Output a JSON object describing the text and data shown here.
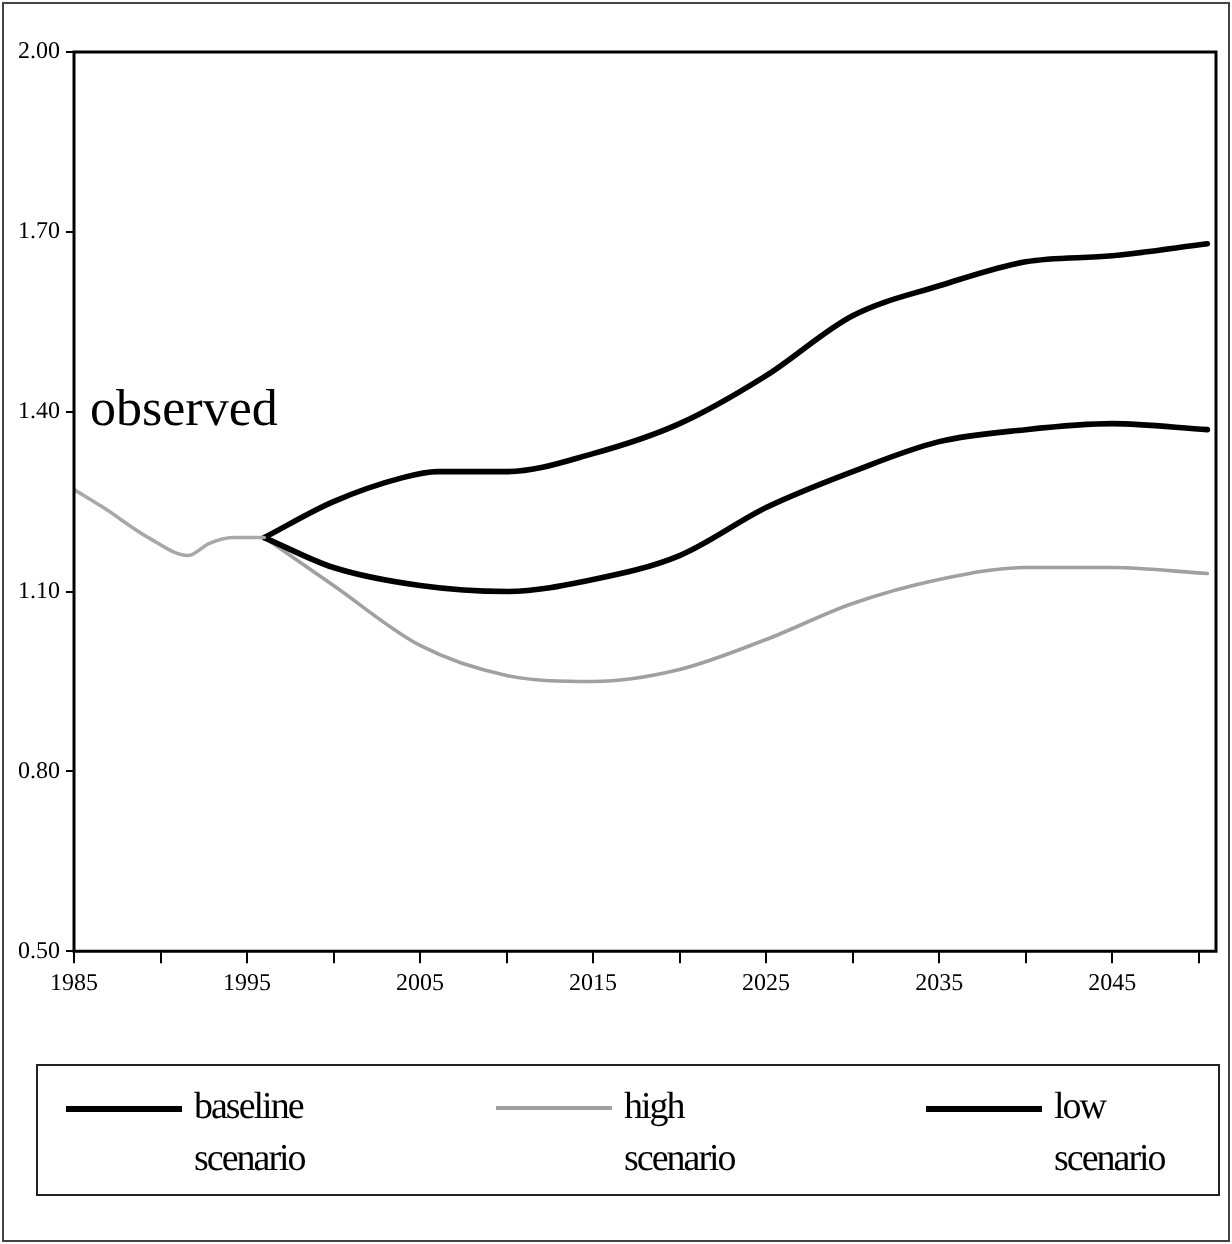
{
  "chart_data": {
    "type": "line",
    "xlim": [
      1985,
      2051
    ],
    "ylim": [
      0.5,
      2.0
    ],
    "xticks": [
      1985,
      {
        "value": 1990,
        "label": null
      },
      1995,
      {
        "value": 2000,
        "label": null
      },
      2005,
      {
        "value": 2010,
        "label": null
      },
      2015,
      {
        "value": 2020,
        "label": null
      },
      2025,
      {
        "value": 2030,
        "label": null
      },
      2035,
      {
        "value": 2040,
        "label": null
      },
      2045,
      {
        "value": 2050,
        "label": null
      }
    ],
    "yticks": [
      {
        "value": 0.5,
        "label": "0.50"
      },
      {
        "value": 0.8,
        "label": "0.80"
      },
      {
        "value": 1.1,
        "label": "1.10"
      },
      {
        "value": 1.4,
        "label": "1.40"
      },
      {
        "value": 1.7,
        "label": "1.70"
      },
      {
        "value": 2.0,
        "label": "2.00"
      }
    ],
    "grid": false,
    "legend": "bottom",
    "marker": "none",
    "line_style": "solid",
    "series": [
      {
        "color": "#a8a8a8",
        "x": [
          1985,
          1986.7,
          1989.3,
          1991.6,
          1992.8,
          1994.2,
          1996
        ],
        "values": [
          1.27,
          1.24,
          1.19,
          1.16,
          1.18,
          1.19,
          1.19
        ]
      },
      {
        "name": "baseline scenario",
        "color": "#000000",
        "x": [
          1996,
          2000,
          2005,
          2010,
          2015,
          2020,
          2025,
          2030,
          2035,
          2040,
          2045,
          2050.5
        ],
        "values": [
          1.19,
          1.14,
          1.11,
          1.1,
          1.12,
          1.16,
          1.24,
          1.3,
          1.35,
          1.37,
          1.38,
          1.37
        ]
      },
      {
        "name": "high scenario",
        "color": "#a0a0a0",
        "x": [
          1996,
          2000,
          2005,
          2010,
          2015,
          2020,
          2025,
          2030,
          2035,
          2040,
          2045,
          2050.5
        ],
        "values": [
          1.19,
          1.11,
          1.01,
          0.96,
          0.95,
          0.97,
          1.02,
          1.08,
          1.12,
          1.14,
          1.14,
          1.13
        ]
      },
      {
        "name": "low scenario",
        "color": "#000000",
        "x": [
          1996,
          2000,
          2004,
          2006,
          2010,
          2015,
          2020,
          2025,
          2030,
          2035,
          2040,
          2045,
          2050.5
        ],
        "values": [
          1.19,
          1.25,
          1.29,
          1.3,
          1.3,
          1.33,
          1.38,
          1.46,
          1.56,
          1.61,
          1.65,
          1.66,
          1.68
        ]
      }
    ],
    "annotations": [
      "observed"
    ]
  }
}
